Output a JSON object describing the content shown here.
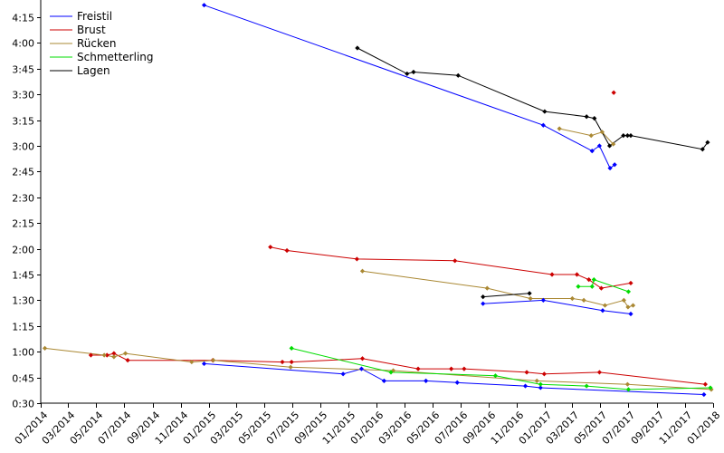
{
  "chart_data": {
    "type": "line",
    "title": "",
    "xlabel": "",
    "ylabel": "",
    "x_ticks": [
      "01/2014",
      "03/2014",
      "05/2014",
      "07/2014",
      "09/2014",
      "11/2014",
      "01/2015",
      "03/2015",
      "05/2015",
      "07/2015",
      "09/2015",
      "11/2015",
      "01/2016",
      "03/2016",
      "05/2016",
      "07/2016",
      "09/2016",
      "11/2016",
      "01/2017",
      "03/2017",
      "05/2017",
      "07/2017",
      "09/2017",
      "11/2017",
      "01/2018"
    ],
    "y_ticks": [
      "0:30",
      "0:45",
      "1:00",
      "1:15",
      "1:30",
      "1:45",
      "2:00",
      "2:15",
      "2:30",
      "2:45",
      "3:00",
      "3:15",
      "3:30",
      "3:45",
      "4:00",
      "4:15"
    ],
    "x_range": [
      "2014-01-01",
      "2018-01-01"
    ],
    "y_range": [
      "0:30",
      "4:25"
    ],
    "grid": false,
    "legend_position": "top-left",
    "series": [
      {
        "name": "Freistil",
        "color": "#0000ff",
        "segments": [
          [
            [
              "2014-12-22",
              "4:22"
            ],
            [
              "2016-12-28",
              "3:12"
            ],
            [
              "2017-04-13",
              "2:57"
            ],
            [
              "2017-04-29",
              "3:00"
            ],
            [
              "2017-05-22",
              "2:47"
            ],
            [
              "2017-06-01",
              "2:49"
            ]
          ],
          [
            [
              "2014-12-22",
              "0:53"
            ],
            [
              "2015-10-20",
              "0:47"
            ],
            [
              "2015-11-29",
              "0:50"
            ],
            [
              "2016-01-17",
              "0:43"
            ],
            [
              "2016-04-17",
              "0:43"
            ],
            [
              "2016-06-24",
              "0:42"
            ],
            [
              "2016-11-19",
              "0:40"
            ],
            [
              "2016-12-22",
              "0:39"
            ],
            [
              "2017-12-12",
              "0:35"
            ]
          ],
          [
            [
              "2016-08-19",
              "1:28"
            ],
            [
              "2016-12-28",
              "1:30"
            ],
            [
              "2017-05-06",
              "1:24"
            ],
            [
              "2017-07-06",
              "1:22"
            ]
          ]
        ]
      },
      {
        "name": "Brust",
        "color": "#cc0000",
        "segments": [
          [
            [
              "2017-05-30",
              "3:31"
            ]
          ],
          [
            [
              "2015-05-15",
              "2:01"
            ],
            [
              "2015-06-20",
              "1:59"
            ],
            [
              "2015-11-19",
              "1:54"
            ],
            [
              "2016-06-19",
              "1:53"
            ],
            [
              "2017-01-16",
              "1:45"
            ],
            [
              "2017-03-11",
              "1:45"
            ],
            [
              "2017-04-06",
              "1:42"
            ],
            [
              "2017-05-03",
              "1:37"
            ],
            [
              "2017-07-06",
              "1:40"
            ]
          ],
          [
            [
              "2014-04-20",
              "0:58"
            ],
            [
              "2014-05-25",
              "0:58"
            ],
            [
              "2014-06-09",
              "0:59"
            ],
            [
              "2014-07-09",
              "0:55"
            ],
            [
              "2015-01-10",
              "0:55"
            ],
            [
              "2015-06-10",
              "0:54"
            ],
            [
              "2015-06-30",
              "0:54"
            ],
            [
              "2015-12-01",
              "0:56"
            ],
            [
              "2016-03-31",
              "0:50"
            ],
            [
              "2016-06-11",
              "0:50"
            ],
            [
              "2016-07-09",
              "0:50"
            ],
            [
              "2016-11-22",
              "0:48"
            ],
            [
              "2016-12-30",
              "0:47"
            ],
            [
              "2017-04-29",
              "0:48"
            ],
            [
              "2017-12-15",
              "0:41"
            ]
          ]
        ]
      },
      {
        "name": "Rücken",
        "color": "#aa8833",
        "segments": [
          [
            [
              "2017-02-01",
              "3:10"
            ],
            [
              "2017-04-11",
              "3:06"
            ],
            [
              "2017-05-05",
              "3:08"
            ],
            [
              "2017-05-29",
              "3:01"
            ]
          ],
          [
            [
              "2015-12-01",
              "1:47"
            ],
            [
              "2016-08-28",
              "1:37"
            ],
            [
              "2016-11-30",
              "1:31"
            ],
            [
              "2017-03-01",
              "1:31"
            ],
            [
              "2017-03-26",
              "1:30"
            ],
            [
              "2017-05-11",
              "1:27"
            ],
            [
              "2017-06-21",
              "1:30"
            ],
            [
              "2017-06-30",
              "1:26"
            ],
            [
              "2017-07-11",
              "1:27"
            ]
          ],
          [
            [
              "2014-01-10",
              "1:02"
            ],
            [
              "2014-05-19",
              "0:58"
            ],
            [
              "2014-06-09",
              "0:57"
            ],
            [
              "2014-07-04",
              "0:59"
            ],
            [
              "2014-11-25",
              "0:54"
            ],
            [
              "2015-01-11",
              "0:55"
            ],
            [
              "2015-06-28",
              "0:51"
            ],
            [
              "2016-02-06",
              "0:49"
            ],
            [
              "2016-12-14",
              "0:43"
            ],
            [
              "2017-06-29",
              "0:41"
            ],
            [
              "2017-12-28",
              "0:38"
            ]
          ]
        ]
      },
      {
        "name": "Schmetterling",
        "color": "#00dd00",
        "segments": [
          [
            [
              "2017-03-14",
              "1:38"
            ],
            [
              "2017-04-13",
              "1:38"
            ],
            [
              "2017-04-17",
              "1:42"
            ],
            [
              "2017-07-01",
              "1:35"
            ]
          ],
          [
            [
              "2015-06-30",
              "1:02"
            ],
            [
              "2016-02-01",
              "0:48"
            ],
            [
              "2016-09-15",
              "0:46"
            ],
            [
              "2016-12-22",
              "0:41"
            ],
            [
              "2017-04-01",
              "0:40"
            ],
            [
              "2017-07-01",
              "0:38"
            ],
            [
              "2017-12-26",
              "0:39"
            ]
          ]
        ]
      },
      {
        "name": "Lagen",
        "color": "#000000",
        "segments": [
          [
            [
              "2015-11-20",
              "3:57"
            ],
            [
              "2016-03-07",
              "3:42"
            ],
            [
              "2016-03-21",
              "3:43"
            ],
            [
              "2016-06-26",
              "3:41"
            ],
            [
              "2016-12-31",
              "3:20"
            ],
            [
              "2017-04-01",
              "3:17"
            ],
            [
              "2017-04-18",
              "3:16"
            ],
            [
              "2017-05-21",
              "3:00"
            ],
            [
              "2017-06-20",
              "3:06"
            ],
            [
              "2017-06-29",
              "3:06"
            ],
            [
              "2017-07-06",
              "3:06"
            ],
            [
              "2017-12-09",
              "2:58"
            ],
            [
              "2017-12-20",
              "3:02"
            ]
          ],
          [
            [
              "2016-08-19",
              "1:32"
            ],
            [
              "2016-11-28",
              "1:34"
            ]
          ]
        ]
      }
    ]
  }
}
